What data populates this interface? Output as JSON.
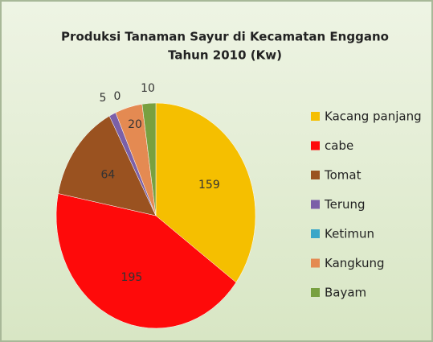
{
  "chart_data": {
    "type": "pie",
    "title": [
      "Produksi Tanaman Sayur di Kecamatan Enggano",
      "Tahun 2010 (Kw)"
    ],
    "categories": [
      "Kacang panjang",
      "cabe",
      "Tomat",
      "Terung",
      "Ketimun",
      "Kangkung",
      "Bayam"
    ],
    "values": [
      159,
      195,
      64,
      5,
      0,
      20,
      10
    ],
    "colors": [
      "#f5bf00",
      "#fe0a0a",
      "#9a5220",
      "#7b60a8",
      "#3aa6c8",
      "#e48a52",
      "#78a040"
    ],
    "legend": "right"
  }
}
